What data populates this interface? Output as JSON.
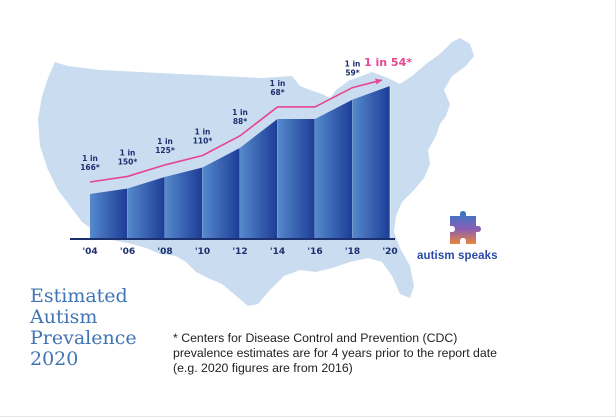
{
  "chart_data": {
    "type": "bar",
    "title": "Estimated Autism Prevalence 2020",
    "categories": [
      "'04",
      "'06",
      "'08",
      "'10",
      "'12",
      "'14",
      "'16",
      "'18",
      "'20"
    ],
    "prevalence_per": [
      166,
      150,
      125,
      110,
      88,
      68,
      68,
      59,
      54
    ],
    "labels": [
      "1 in 166*",
      "1 in 150*",
      "1 in 125*",
      "1 in 110*",
      "1 in 88*",
      "1 in 68*",
      null,
      "1 in 59*",
      "1 in 54*"
    ],
    "trend_line": true,
    "colors": {
      "bar_start": "#5187cb",
      "bar_end": "#1d3e98",
      "trend": "#e8458f",
      "map": "#c9dcf0",
      "axis": "#1c2f6e"
    }
  },
  "title_lines": [
    "Estimated",
    "Autism",
    "Prevalence",
    "2020"
  ],
  "footnote_lines": [
    "* Centers for Disease Control and Prevention (CDC)",
    "prevalence estimates are for 4 years prior to the report date",
    "(e.g. 2020 figures are from 2016)"
  ],
  "brand": {
    "name": "autism speaks",
    "icon": "puzzle-piece-icon"
  }
}
